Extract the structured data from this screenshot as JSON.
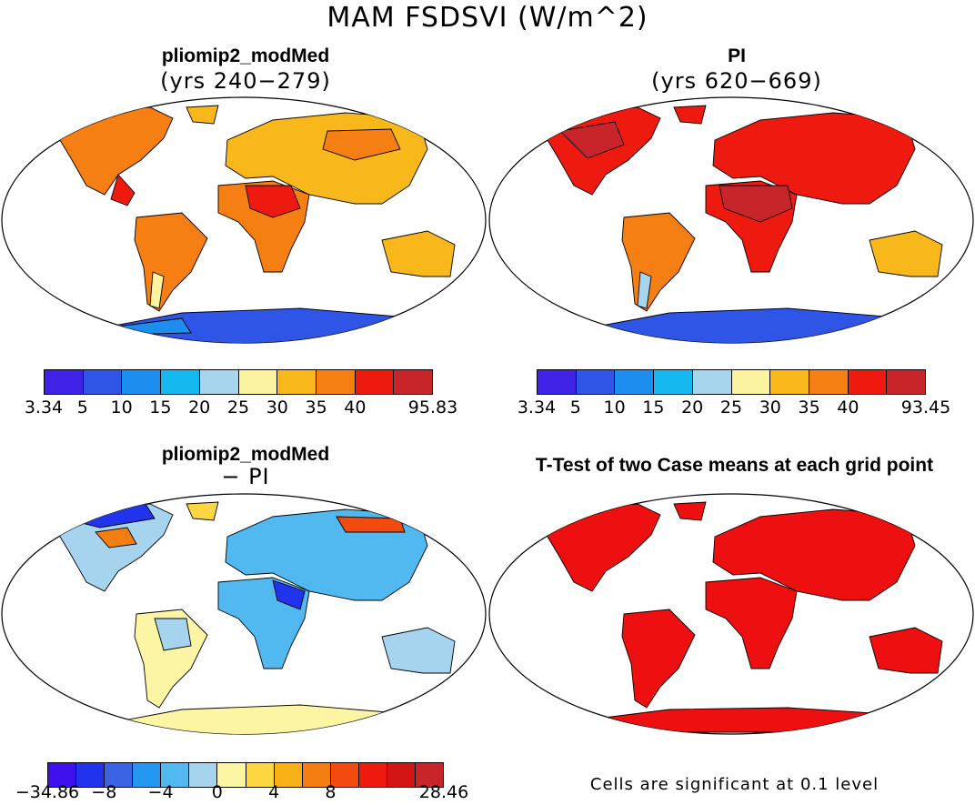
{
  "title": "MAM FSDSVI (W/m^2)",
  "panels": [
    {
      "title": "pliomip2_modMed",
      "subtitle": "(yrs 240−279)"
    },
    {
      "title": "PI",
      "subtitle": "(yrs 620−669)"
    },
    {
      "title": "pliomip2_modMed",
      "subtitle": "− PI"
    },
    {
      "title": "T-Test of two Case means at each grid point",
      "subtitle": ""
    }
  ],
  "colorbars": [
    {
      "labels": [
        "3.34",
        "5",
        "10",
        "15",
        "20",
        "25",
        "30",
        "35",
        "40",
        "95.83"
      ],
      "colors": [
        "#3f22e6",
        "#2e55e6",
        "#1e8df0",
        "#16b8f0",
        "#a8d5ee",
        "#fbf3a0",
        "#f8b81c",
        "#f57f12",
        "#ee1a10",
        "#c8252a"
      ]
    },
    {
      "labels": [
        "3.34",
        "5",
        "10",
        "15",
        "20",
        "25",
        "30",
        "35",
        "40",
        "93.45"
      ],
      "colors": [
        "#3f22e6",
        "#2e55e6",
        "#1e8df0",
        "#16b8f0",
        "#a8d5ee",
        "#fbf3a0",
        "#f8b81c",
        "#f57f12",
        "#ee1a10",
        "#c8252a"
      ]
    },
    {
      "labels": [
        "−34.86",
        "−8",
        "−4",
        "0",
        "4",
        "8",
        "28.46"
      ],
      "colors": [
        "#3f10ee",
        "#2233ee",
        "#3a64e4",
        "#2497f0",
        "#52b8f0",
        "#a6d4ef",
        "#fcf5a4",
        "#fcd742",
        "#f8b016",
        "#f57e12",
        "#f34a10",
        "#ee1a10",
        "#d21616",
        "#c8252a"
      ]
    }
  ],
  "note": "Cells are significant at 0.1 level"
}
